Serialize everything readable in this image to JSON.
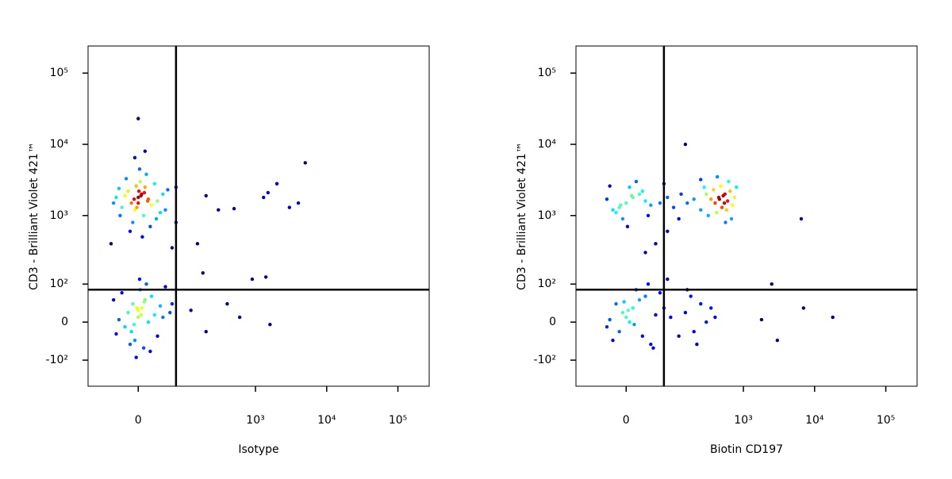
{
  "chart_data": [
    {
      "type": "scatter",
      "x_label": "Isotype",
      "y_label": "CD3 - Brilliant Violet 421™",
      "scale": "biexponential",
      "xlim": [
        -110,
        275000
      ],
      "ylim": [
        -250,
        240000
      ],
      "xticks": [
        0,
        {
          "value": 1000,
          "label": "10³"
        },
        {
          "value": 10000,
          "label": "10⁴"
        },
        {
          "value": 100000,
          "label": "10⁵"
        }
      ],
      "yticks": [
        {
          "value": -100,
          "label": "-10²"
        },
        0,
        {
          "value": 100,
          "label": "10²"
        },
        {
          "value": 1000,
          "label": "10³"
        },
        {
          "value": 10000,
          "label": "10⁴"
        },
        {
          "value": 100000,
          "label": "10⁵"
        }
      ],
      "quadrant_x": 70,
      "quadrant_y": 80,
      "x": [
        0,
        5,
        -10,
        10,
        -5,
        15,
        -15,
        20,
        -20,
        3,
        8,
        -8,
        25,
        -25,
        30,
        -30,
        12,
        -12,
        35,
        -35,
        2,
        40,
        -40,
        18,
        -18,
        45,
        6,
        -3,
        50,
        28,
        -28,
        0,
        4,
        -6,
        9,
        -2,
        14,
        1,
        0,
        10,
        -5,
        60,
        -45,
        70,
        70,
        0,
        5,
        -10,
        10,
        -5,
        15,
        -15,
        20,
        -20,
        3,
        8,
        -8,
        25,
        -25,
        30,
        -30,
        12,
        -12,
        35,
        -35,
        2,
        40,
        -40,
        18,
        45,
        0,
        4,
        -6,
        9,
        -2,
        55,
        60,
        -3,
        150,
        300,
        500,
        1300,
        1500,
        2000,
        3000,
        4000,
        5000,
        200,
        180,
        400,
        600,
        1400,
        1600,
        900,
        200,
        120
      ],
      "y": [
        1800,
        2000,
        1500,
        2500,
        1200,
        1700,
        2200,
        1400,
        1900,
        3000,
        1000,
        800,
        2800,
        1300,
        1600,
        2400,
        3800,
        600,
        1100,
        1800,
        4500,
        2000,
        1500,
        700,
        3300,
        1200,
        500,
        2600,
        2300,
        900,
        1000,
        1500,
        1900,
        1700,
        2100,
        1300,
        1600,
        2200,
        23000,
        8000,
        6500,
        350,
        400,
        2500,
        800,
        10,
        30,
        -20,
        50,
        -40,
        0,
        20,
        60,
        -10,
        80,
        -60,
        40,
        15,
        70,
        -30,
        5,
        100,
        -50,
        35,
        -25,
        120,
        10,
        50,
        -70,
        90,
        25,
        15,
        -5,
        45,
        30,
        20,
        40,
        -90,
        400,
        1200,
        1250,
        1800,
        2100,
        2800,
        1300,
        1500,
        5500,
        1900,
        150,
        40,
        10,
        130,
        -5,
        120,
        -20,
        25
      ]
    },
    {
      "type": "scatter",
      "x_label": "Biotin CD197",
      "y_label": "CD3 - Brilliant Violet 421™",
      "scale": "biexponential",
      "xlim": [
        -110,
        275000
      ],
      "ylim": [
        -250,
        240000
      ],
      "xticks": [
        0,
        {
          "value": 1000,
          "label": "10³"
        },
        {
          "value": 10000,
          "label": "10⁴"
        },
        {
          "value": 100000,
          "label": "10⁵"
        }
      ],
      "yticks": [
        {
          "value": -100,
          "label": "-10²"
        },
        0,
        {
          "value": 100,
          "label": "10²"
        },
        {
          "value": 1000,
          "label": "10³"
        },
        {
          "value": 10000,
          "label": "10⁴"
        },
        {
          "value": 100000,
          "label": "10⁵"
        }
      ],
      "quadrant_x": 70,
      "quadrant_y": 80,
      "x": [
        0,
        10,
        -10,
        20,
        -20,
        5,
        -5,
        30,
        -30,
        15,
        -15,
        40,
        2,
        25,
        -25,
        8,
        -8,
        35,
        60,
        80,
        100,
        130,
        160,
        200,
        250,
        280,
        70,
        120,
        400,
        450,
        500,
        550,
        600,
        350,
        650,
        700,
        480,
        420,
        520,
        580,
        380,
        620,
        750,
        320,
        460,
        540,
        300,
        800,
        680,
        430,
        560,
        250,
        0,
        10,
        -10,
        20,
        -20,
        5,
        -5,
        30,
        -30,
        15,
        40,
        -15,
        50,
        25,
        60,
        -25,
        35,
        45,
        70,
        80,
        12,
        3,
        -3,
        90,
        150,
        200,
        250,
        300,
        350,
        180,
        220,
        400,
        120,
        160,
        1800,
        3000,
        6500,
        7000,
        18000,
        2500,
        80,
        50,
        30,
        150
      ],
      "y": [
        1500,
        1800,
        1300,
        2000,
        1200,
        2500,
        900,
        1600,
        1700,
        3000,
        1100,
        1400,
        700,
        2200,
        2600,
        1900,
        1400,
        1000,
        1500,
        1800,
        1300,
        2000,
        1500,
        1700,
        1200,
        2500,
        2800,
        900,
        1500,
        1800,
        1300,
        2000,
        1600,
        1700,
        2200,
        1400,
        2600,
        1100,
        1900,
        1200,
        2300,
        3000,
        1800,
        1000,
        1700,
        1500,
        2000,
        2500,
        900,
        3500,
        800,
        3200,
        10,
        30,
        -20,
        50,
        -40,
        0,
        20,
        60,
        -10,
        80,
        -50,
        40,
        15,
        -30,
        70,
        5,
        100,
        -60,
        30,
        120,
        -5,
        25,
        45,
        10,
        20,
        -20,
        40,
        0,
        30,
        60,
        -50,
        10,
        -30,
        80,
        5,
        -40,
        900,
        30,
        10,
        100,
        600,
        400,
        300,
        10000
      ]
    }
  ]
}
